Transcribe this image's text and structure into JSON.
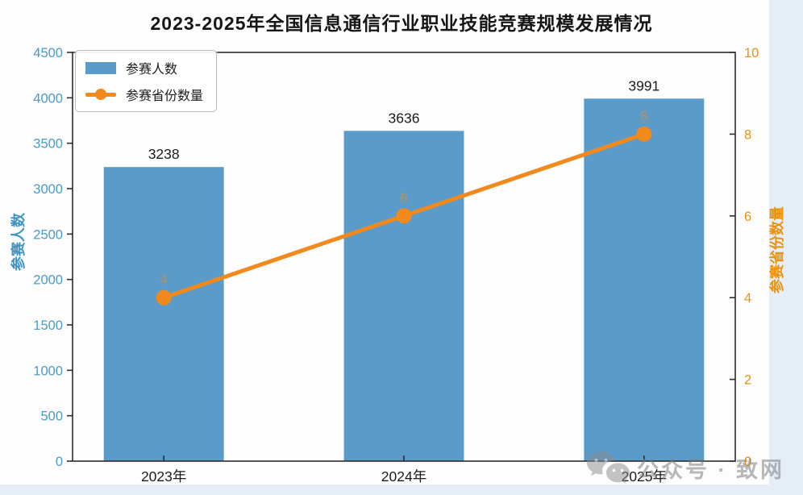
{
  "title": "2023-2025年全国信息通信行业职业技能竞赛规模发展情况",
  "chart_data": {
    "type": "bar+line",
    "categories": [
      "2023年",
      "2024年",
      "2025年"
    ],
    "series": [
      {
        "name": "参赛人数",
        "kind": "bar",
        "axis": "left",
        "values": [
          3238,
          3636,
          3991
        ],
        "color": "#5B9BC9",
        "labels": [
          "3238",
          "3636",
          "3991"
        ]
      },
      {
        "name": "参赛省份数量",
        "kind": "line",
        "axis": "right",
        "values": [
          4,
          6,
          8
        ],
        "color": "#F1891D",
        "labels": [
          "4",
          "6",
          "8"
        ],
        "point_label_color": "rgba(233,140,40,0.65)"
      }
    ],
    "left_axis": {
      "label": "参赛人数",
      "min": 0,
      "max": 4500,
      "step": 500,
      "tick_color": "#4A9AC8",
      "label_color": "#3E93C5",
      "ticks": [
        "0",
        "500",
        "1000",
        "1500",
        "2000",
        "2500",
        "3000",
        "3500",
        "4000",
        "4500"
      ]
    },
    "right_axis": {
      "label": "参赛省份数量",
      "min": 0,
      "max": 10,
      "step": 2,
      "tick_color": "#E8920E",
      "label_color": "#E8920E",
      "ticks": [
        "0",
        "2",
        "4",
        "6",
        "8",
        "10"
      ]
    },
    "x_axis": {
      "tick_color": "#1c1c1c"
    },
    "legend_position": "upper left",
    "grid": false,
    "spine_color": "#2d2d2d",
    "bar_value_label_color": "#1c1c1c"
  },
  "watermark": {
    "icon": "wechat-icon",
    "text": "公众号 · 致网"
  }
}
